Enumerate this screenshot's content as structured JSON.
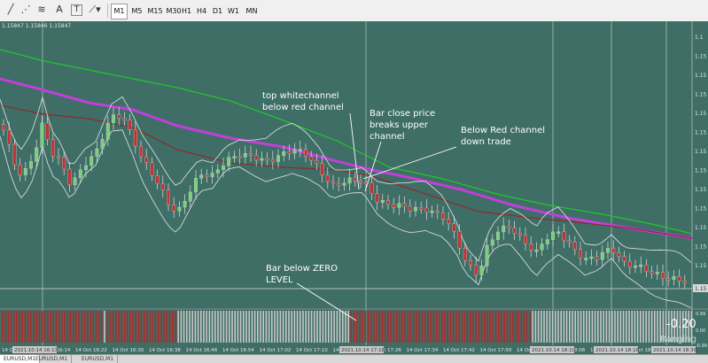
{
  "toolbar": {
    "icons": [
      {
        "name": "line-tool-icon",
        "glyph": "╱"
      },
      {
        "name": "trend-lines-icon",
        "glyph": "⋰"
      },
      {
        "name": "fibonacci-icon",
        "glyph": "≋"
      },
      {
        "name": "text-tool-icon",
        "glyph": "A"
      },
      {
        "name": "text-label-icon",
        "glyph": "T"
      },
      {
        "name": "shapes-menu-icon",
        "glyph": "⟋▾"
      }
    ],
    "timeframes": [
      "M1",
      "M5",
      "M15",
      "M30",
      "H1",
      "H4",
      "D1",
      "W1",
      "MN"
    ],
    "active_timeframe": "M1"
  },
  "chart": {
    "header": "1.15847 1.15846 1.15847",
    "background": "#3e6e66",
    "colors": {
      "bull": "#7ad07a",
      "bear": "#c03434",
      "green_channel": "#22c82a",
      "magenta_ma": "#c040d8",
      "red_channel": "#8c2c2c",
      "bollinger": "#d8d8d8",
      "indicator_red": "#b02a2a",
      "indicator_grey": "#c8c8c8"
    },
    "annotations": {
      "top_channel": [
        "top whitechannel",
        "below red channel"
      ],
      "close_price": [
        "Bar close price",
        "breaks upper",
        "channel"
      ],
      "below_red": [
        "Below Red channel",
        "down trade"
      ],
      "zero_level": [
        "Bar below ZERO",
        "LEVEL"
      ]
    },
    "price_labels": [
      "1.1",
      "1.15",
      "1.15",
      "1.15",
      "1.15",
      "1.15",
      "1.15",
      "1.15",
      "1.15",
      "1.15",
      "1.15",
      "1.15",
      "1.15"
    ],
    "current_price_label": "1.15",
    "time_labels": [
      "14 Oct 16:13",
      "14 Oct 16:14",
      "14 Oct 16:22",
      "14 Oct 16:30",
      "14 Oct 16:38",
      "14 Oct 16:46",
      "14 Oct 16:54",
      "14 Oct 17:02",
      "14 Oct 17:10",
      "14 Oct 17:18",
      "14 Oct 17:26",
      "14 Oct 17:34",
      "14 Oct 17:42",
      "14 Oct 17:50",
      "14 Oct 17:58",
      "14 Oct 18:06",
      "14 Oct 18:14",
      "14 Oct 18:22",
      "14 Oct 18:30"
    ],
    "highlight_times": [
      "2021.10.14 16:13",
      "2021.10.14 17:18",
      "2021.10.14 18:10",
      "2021.10.14 18:16",
      "2021.10.14 18:30"
    ],
    "indicator_value": "-0.20",
    "indicator_status": "Ranging",
    "indicator_scale": [
      "0.99",
      "0.00",
      "-0.99"
    ]
  },
  "tabs": [
    "EURUSD,M1",
    "EURUSD,M1",
    "EURUSD,M1"
  ]
}
